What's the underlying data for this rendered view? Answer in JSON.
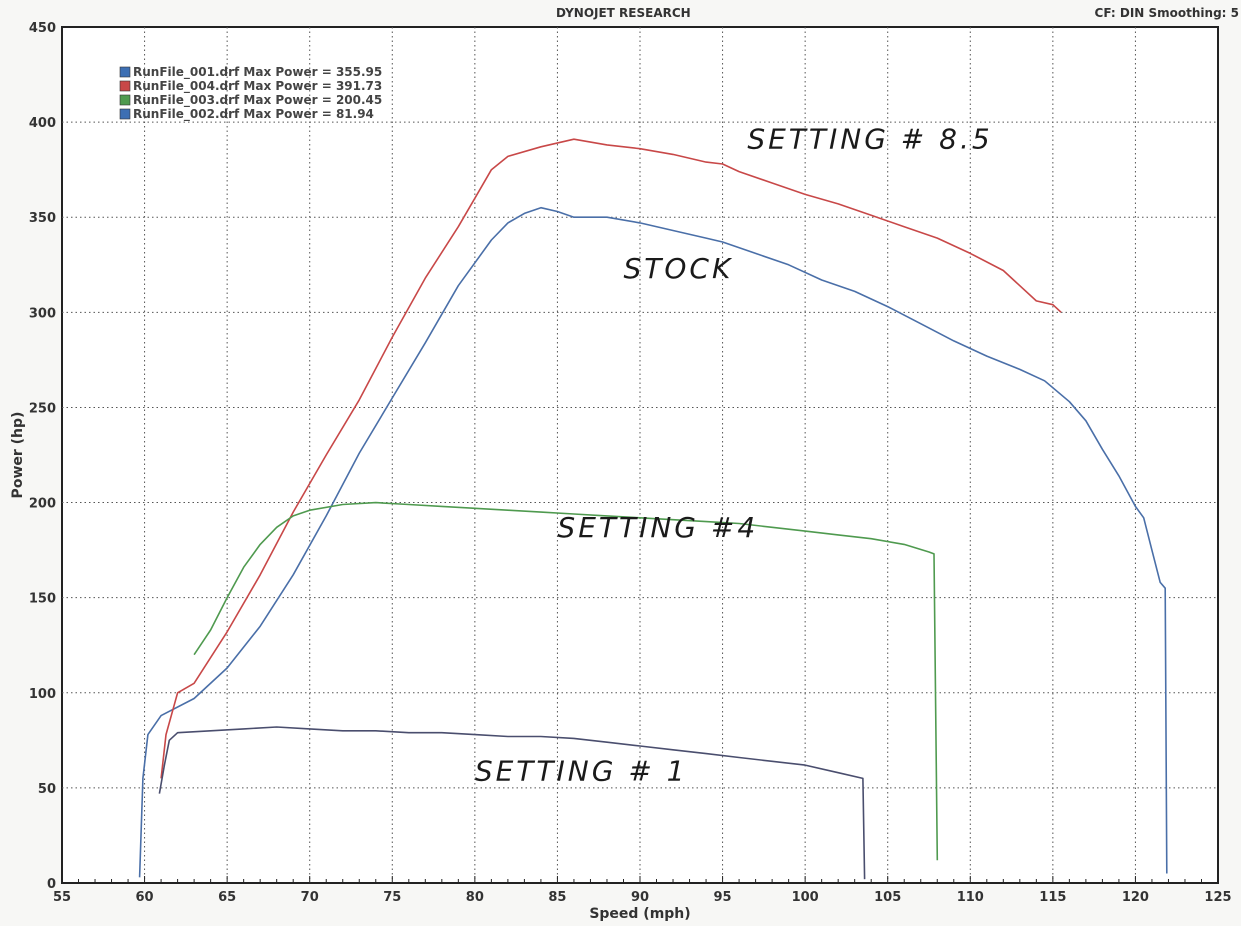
{
  "header": {
    "title": "DYNOJET RESEARCH",
    "settings": "CF: DIN  Smoothing: 5"
  },
  "chart_data": {
    "type": "line",
    "xlabel": "Speed (mph)",
    "ylabel": "Power (hp)",
    "xlim": [
      55,
      125
    ],
    "ylim": [
      0,
      450
    ],
    "x_ticks": [
      55,
      60,
      65,
      70,
      75,
      80,
      85,
      90,
      95,
      100,
      105,
      110,
      115,
      120,
      125
    ],
    "y_ticks": [
      0,
      50,
      100,
      150,
      200,
      250,
      300,
      350,
      400,
      450
    ],
    "grid": true,
    "legend_position": "top-left",
    "legend": [
      {
        "label": "RunFile_001.drf Max Power = 355.95",
        "color": "#3d6fb3"
      },
      {
        "label": "RunFile_004.drf Max Power = 391.73",
        "color": "#c84848"
      },
      {
        "label": "RunFile_003.drf Max Power = 200.45",
        "color": "#4f9a4f"
      },
      {
        "label": "RunFile_002.drf Max Power = 81.94",
        "color": "#3d6fb3"
      }
    ],
    "series": [
      {
        "name": "RunFile_001.drf",
        "color": "#4a6fa8",
        "points": [
          [
            59.7,
            3
          ],
          [
            59.9,
            55
          ],
          [
            60.2,
            78
          ],
          [
            61,
            88
          ],
          [
            63,
            97
          ],
          [
            65,
            113
          ],
          [
            67,
            135
          ],
          [
            69,
            162
          ],
          [
            71,
            193
          ],
          [
            73,
            226
          ],
          [
            75,
            255
          ],
          [
            77,
            284
          ],
          [
            79,
            314
          ],
          [
            81,
            338
          ],
          [
            82,
            347
          ],
          [
            83,
            352
          ],
          [
            84,
            355
          ],
          [
            85,
            353
          ],
          [
            86,
            350
          ],
          [
            88,
            350
          ],
          [
            90,
            347
          ],
          [
            92,
            343
          ],
          [
            94,
            339
          ],
          [
            95,
            337
          ],
          [
            97,
            331
          ],
          [
            99,
            325
          ],
          [
            101,
            317
          ],
          [
            103,
            311
          ],
          [
            105,
            303
          ],
          [
            107,
            294
          ],
          [
            109,
            285
          ],
          [
            111,
            277
          ],
          [
            113,
            270
          ],
          [
            114.5,
            264
          ],
          [
            116,
            253
          ],
          [
            117,
            243
          ],
          [
            118,
            228
          ],
          [
            119,
            214
          ],
          [
            120,
            198
          ],
          [
            120.5,
            192
          ],
          [
            121,
            175
          ],
          [
            121.5,
            158
          ],
          [
            121.8,
            155
          ],
          [
            121.9,
            5
          ]
        ]
      },
      {
        "name": "RunFile_004.drf",
        "color": "#c84848",
        "points": [
          [
            61,
            55
          ],
          [
            61.3,
            78
          ],
          [
            62,
            100
          ],
          [
            63,
            105
          ],
          [
            65,
            132
          ],
          [
            67,
            162
          ],
          [
            69,
            195
          ],
          [
            71,
            225
          ],
          [
            73,
            254
          ],
          [
            75,
            287
          ],
          [
            77,
            318
          ],
          [
            79,
            345
          ],
          [
            80,
            360
          ],
          [
            81,
            375
          ],
          [
            82,
            382
          ],
          [
            84,
            387
          ],
          [
            86,
            391
          ],
          [
            88,
            388
          ],
          [
            90,
            386
          ],
          [
            92,
            383
          ],
          [
            94,
            379
          ],
          [
            95,
            378
          ],
          [
            96,
            374
          ],
          [
            98,
            368
          ],
          [
            100,
            362
          ],
          [
            102,
            357
          ],
          [
            104,
            351
          ],
          [
            106,
            345
          ],
          [
            108,
            339
          ],
          [
            110,
            331
          ],
          [
            112,
            322
          ],
          [
            113,
            314
          ],
          [
            114,
            306
          ],
          [
            115,
            304
          ],
          [
            115.5,
            300
          ]
        ]
      },
      {
        "name": "RunFile_003.drf",
        "color": "#4f9a4f",
        "points": [
          [
            63,
            120
          ],
          [
            64,
            133
          ],
          [
            65,
            150
          ],
          [
            66,
            166
          ],
          [
            67,
            178
          ],
          [
            68,
            187
          ],
          [
            69,
            193
          ],
          [
            70,
            196
          ],
          [
            72,
            199
          ],
          [
            74,
            200
          ],
          [
            76,
            199
          ],
          [
            78,
            198
          ],
          [
            80,
            197
          ],
          [
            82,
            196
          ],
          [
            84,
            195
          ],
          [
            86,
            194
          ],
          [
            88,
            193
          ],
          [
            90,
            192
          ],
          [
            92,
            191
          ],
          [
            94,
            190
          ],
          [
            96,
            189
          ],
          [
            98,
            187
          ],
          [
            100,
            185
          ],
          [
            102,
            183
          ],
          [
            104,
            181
          ],
          [
            106,
            178
          ],
          [
            107.5,
            174
          ],
          [
            107.8,
            173
          ],
          [
            108,
            12
          ]
        ]
      },
      {
        "name": "RunFile_002.drf",
        "color": "#4a4e6e",
        "points": [
          [
            60.9,
            47
          ],
          [
            61.2,
            62
          ],
          [
            61.5,
            75
          ],
          [
            62,
            79
          ],
          [
            64,
            80
          ],
          [
            66,
            81
          ],
          [
            68,
            82
          ],
          [
            70,
            81
          ],
          [
            72,
            80
          ],
          [
            74,
            80
          ],
          [
            76,
            79
          ],
          [
            78,
            79
          ],
          [
            80,
            78
          ],
          [
            82,
            77
          ],
          [
            84,
            77
          ],
          [
            86,
            76
          ],
          [
            88,
            74
          ],
          [
            90,
            72
          ],
          [
            92,
            70
          ],
          [
            94,
            68
          ],
          [
            96,
            66
          ],
          [
            98,
            64
          ],
          [
            100,
            62
          ],
          [
            102,
            58
          ],
          [
            103.5,
            55
          ],
          [
            103.6,
            2
          ]
        ]
      }
    ],
    "annotations": [
      {
        "text": "SETTING # 8.5",
        "x": 96.5,
        "y": 386
      },
      {
        "text": "STOCK",
        "x": 89,
        "y": 318
      },
      {
        "text": "SETTING #4",
        "x": 85,
        "y": 182
      },
      {
        "text": "SETTING # 1",
        "x": 80,
        "y": 54
      }
    ]
  }
}
